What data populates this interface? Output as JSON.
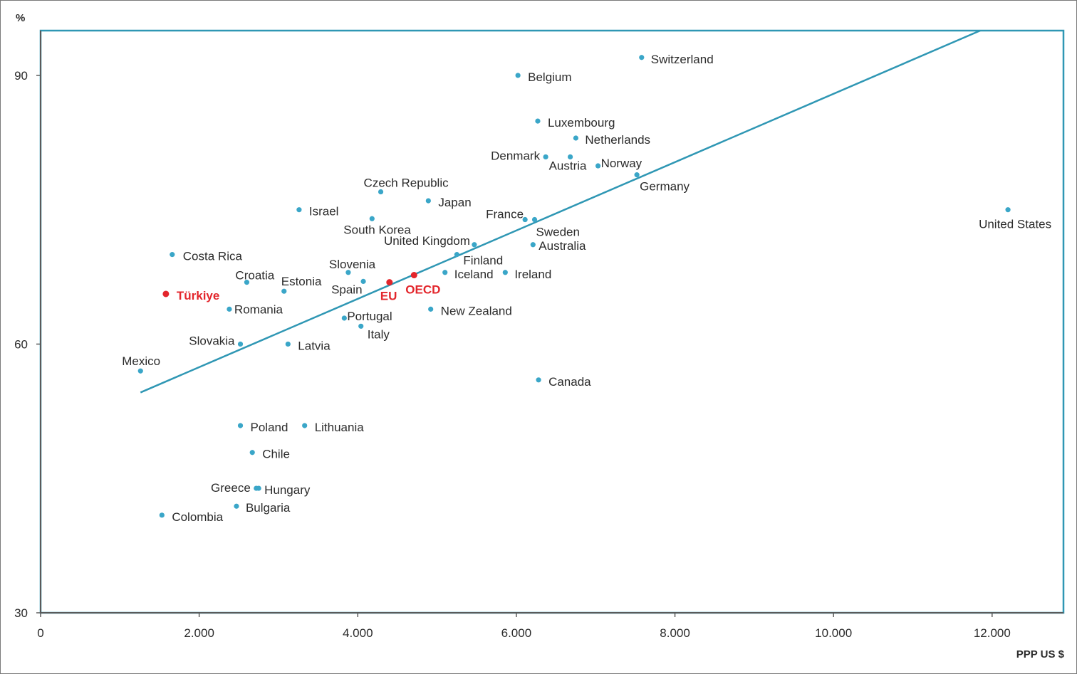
{
  "chart_data": {
    "type": "scatter",
    "title": "",
    "xlabel": "PPP US $",
    "ylabel": "%",
    "xlim": [
      0,
      12900
    ],
    "ylim": [
      30,
      95
    ],
    "x_ticks": [
      0,
      2000,
      4000,
      6000,
      8000,
      10000,
      12000
    ],
    "x_tick_labels": [
      "0",
      "2.000",
      "4.000",
      "6.000",
      "8.000",
      "10.000",
      "12.000"
    ],
    "y_ticks": [
      30,
      60,
      90
    ],
    "y_tick_labels": [
      "30",
      "60",
      "90"
    ],
    "grid": false,
    "colors": {
      "point": "#3aa6c8",
      "highlight": "#e3262c",
      "trendline": "#2f97b4",
      "axis": "#5a5a5a",
      "plot_border": "#2f97b4"
    },
    "trendline": {
      "x": [
        1260,
        11850
      ],
      "y": [
        54.6,
        95
      ]
    },
    "points": [
      {
        "name": "Switzerland",
        "x": 7580,
        "y": 92.0
      },
      {
        "name": "Belgium",
        "x": 6020,
        "y": 90.0
      },
      {
        "name": "Luxembourg",
        "x": 6270,
        "y": 84.9
      },
      {
        "name": "Netherlands",
        "x": 6750,
        "y": 83.0
      },
      {
        "name": "Denmark",
        "x": 6370,
        "y": 80.9
      },
      {
        "name": "Austria",
        "x": 6680,
        "y": 80.9
      },
      {
        "name": "Norway",
        "x": 7030,
        "y": 79.9
      },
      {
        "name": "Germany",
        "x": 7520,
        "y": 78.9
      },
      {
        "name": "Czech Republic",
        "x": 4290,
        "y": 77.0
      },
      {
        "name": "Japan",
        "x": 4890,
        "y": 76.0
      },
      {
        "name": "Israel",
        "x": 3260,
        "y": 75.0
      },
      {
        "name": "United States",
        "x": 12200,
        "y": 75.0
      },
      {
        "name": "France",
        "x": 6110,
        "y": 73.9
      },
      {
        "name": "Sweden",
        "x": 6230,
        "y": 73.9
      },
      {
        "name": "South Korea",
        "x": 4180,
        "y": 74.0
      },
      {
        "name": "United Kingdom",
        "x": 5470,
        "y": 71.1
      },
      {
        "name": "Australia",
        "x": 6210,
        "y": 71.1
      },
      {
        "name": "Finland",
        "x": 5250,
        "y": 70.0
      },
      {
        "name": "Costa Rica",
        "x": 1660,
        "y": 70.0
      },
      {
        "name": "Slovenia",
        "x": 3880,
        "y": 68.0
      },
      {
        "name": "Iceland",
        "x": 5100,
        "y": 68.0
      },
      {
        "name": "Ireland",
        "x": 5860,
        "y": 68.0
      },
      {
        "name": "Croatia",
        "x": 2600,
        "y": 66.9
      },
      {
        "name": "Spain",
        "x": 4070,
        "y": 67.0
      },
      {
        "name": "EU",
        "x": 4400,
        "y": 66.9,
        "highlight": true
      },
      {
        "name": "OECD",
        "x": 4710,
        "y": 67.7,
        "highlight": true
      },
      {
        "name": "Estonia",
        "x": 3070,
        "y": 65.9
      },
      {
        "name": "Türkiye",
        "x": 1580,
        "y": 65.6,
        "highlight": true
      },
      {
        "name": "Romania",
        "x": 2380,
        "y": 63.9
      },
      {
        "name": "New Zealand",
        "x": 4920,
        "y": 63.9
      },
      {
        "name": "Portugal",
        "x": 3830,
        "y": 62.9
      },
      {
        "name": "Italy",
        "x": 4040,
        "y": 62.0
      },
      {
        "name": "Slovakia",
        "x": 2520,
        "y": 60.0
      },
      {
        "name": "Latvia",
        "x": 3120,
        "y": 60.0
      },
      {
        "name": "Mexico",
        "x": 1260,
        "y": 57.0
      },
      {
        "name": "Canada",
        "x": 6280,
        "y": 56.0
      },
      {
        "name": "Poland",
        "x": 2520,
        "y": 50.9
      },
      {
        "name": "Lithuania",
        "x": 3330,
        "y": 50.9
      },
      {
        "name": "Chile",
        "x": 2670,
        "y": 47.9
      },
      {
        "name": "Greece",
        "x": 2720,
        "y": 43.9
      },
      {
        "name": "Hungary",
        "x": 2750,
        "y": 43.9
      },
      {
        "name": "Bulgaria",
        "x": 2470,
        "y": 41.9
      },
      {
        "name": "Colombia",
        "x": 1530,
        "y": 40.9
      }
    ]
  }
}
